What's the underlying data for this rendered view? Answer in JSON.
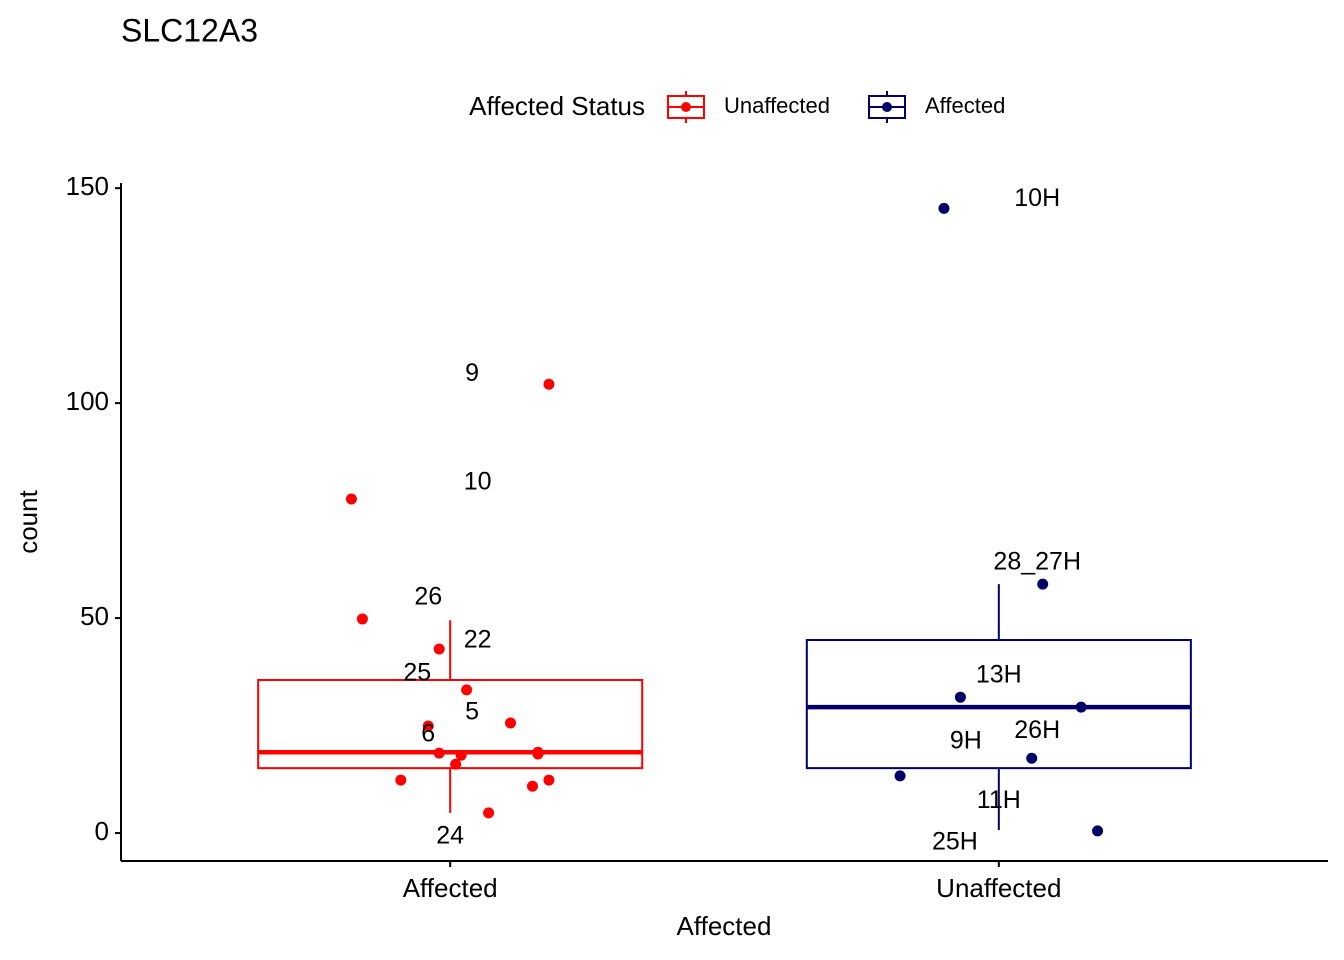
{
  "chart_data": {
    "type": "box",
    "title": "SLC12A3",
    "x_label": "Affected",
    "y_label": "count",
    "legend_title": "Affected Status",
    "categories": [
      "Affected",
      "Unaffected"
    ],
    "xlim": [
      0.4,
      2.6
    ],
    "ylim": [
      -6.5,
      151.2
    ],
    "yticks": [
      0,
      50,
      100,
      150
    ],
    "series": [
      {
        "name": "Unaffected",
        "color": "#ff0000",
        "box": {
          "whisker_low": 4.7,
          "q1": 15.1,
          "median": 18.8,
          "q3": 35.6,
          "whisker_high": 49.5
        },
        "points": {
          "x": [
            1.18,
            0.82,
            0.84,
            0.98,
            1.03,
            1.11,
            0.96,
            1.16,
            1.16,
            0.98,
            1.02,
            1.01,
            0.91,
            1.18,
            1.15,
            1.07
          ],
          "y": [
            104.4,
            77.7,
            49.8,
            42.8,
            33.3,
            25.6,
            24.9,
            18.8,
            18.4,
            18.6,
            18.1,
            16.0,
            12.3,
            12.3,
            10.9,
            4.7
          ]
        },
        "labels": [
          {
            "text": "9",
            "x": 1.04,
            "y": 106.7
          },
          {
            "text": "10",
            "x": 1.05,
            "y": 81.4
          },
          {
            "text": "26",
            "x": 0.96,
            "y": 54.7
          },
          {
            "text": "22",
            "x": 1.05,
            "y": 44.7
          },
          {
            "text": "25",
            "x": 0.94,
            "y": 37.0
          },
          {
            "text": "5",
            "x": 1.04,
            "y": 27.9
          },
          {
            "text": "6",
            "x": 0.96,
            "y": 22.8
          },
          {
            "text": "24",
            "x": 1.0,
            "y": -0.9
          }
        ]
      },
      {
        "name": "Affected",
        "color": "#000066",
        "box": {
          "whisker_low": 0.7,
          "q1": 15.1,
          "median": 29.3,
          "q3": 44.9,
          "whisker_high": 57.9
        },
        "points": {
          "x": [
            1.9,
            2.08,
            1.93,
            2.15,
            2.06,
            1.82,
            2.18
          ],
          "y": [
            145.3,
            57.9,
            31.6,
            29.3,
            17.4,
            13.3,
            0.5
          ]
        },
        "labels": [
          {
            "text": "10H",
            "x": 2.07,
            "y": 147.4
          },
          {
            "text": "28_27H",
            "x": 2.07,
            "y": 62.8
          },
          {
            "text": "13H",
            "x": 2.0,
            "y": 36.5
          },
          {
            "text": "26H",
            "x": 2.07,
            "y": 23.7
          },
          {
            "text": "9H",
            "x": 1.94,
            "y": 21.2
          },
          {
            "text": "11H",
            "x": 2.0,
            "y": 7.4
          },
          {
            "text": "25H",
            "x": 1.92,
            "y": -2.3
          }
        ]
      }
    ]
  }
}
